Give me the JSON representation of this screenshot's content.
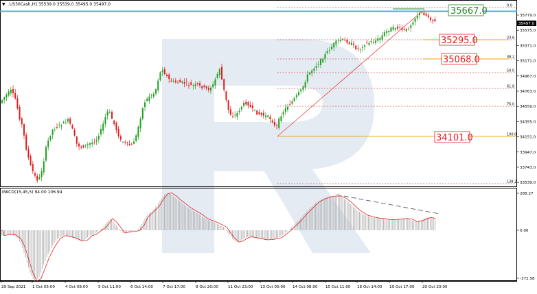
{
  "header": {
    "menu_glyph": "▼",
    "title": ".US30Cash,H1",
    "ohlc": "35539.0 35539.0 35495.0 35497.0"
  },
  "price_axis": {
    "ticks": [
      "35779.0",
      "35575.0",
      "35371.0",
      "35171.0",
      "34967.0",
      "34763.0",
      "34559.0",
      "34355.0",
      "34151.0",
      "33947.0",
      "33743.0",
      "33539.0"
    ],
    "current_price": "35497.0"
  },
  "fibonacci": {
    "levels": [
      "0.0",
      "23.6",
      "38.2",
      "50.0",
      "61.8",
      "76.0",
      "100.0",
      "138.2"
    ],
    "price_labels": [
      {
        "text": "35667.0",
        "color": "#1a8a1a"
      },
      {
        "text": "35295.0",
        "color": "#e02020"
      },
      {
        "text": "35068.0",
        "color": "#e02020"
      },
      {
        "text": "34101.0",
        "color": "#e02020"
      }
    ]
  },
  "indicator": {
    "title": "MACD(15,45,5) 94.00 106.94",
    "ticks": [
      "288.27",
      "0.00",
      "-372.58"
    ]
  },
  "time_axis": {
    "labels": [
      "29 Sep 2021",
      "1 Oct 05:00",
      "4 Oct 08:00",
      "5 Oct 11:00",
      "6 Oct 14:00",
      "7 Oct 17:00",
      "8 Oct 20:00",
      "11 Oct 23:00",
      "13 Oct 05:00",
      "14 Oct 08:00",
      "15 Oct 11:00",
      "18 Oct 14:00",
      "19 Oct 17:00",
      "20 Oct 20:00"
    ]
  },
  "colors": {
    "bull": "#21a021",
    "bear": "#e01c1c",
    "fib": "#e06060",
    "current_level": "#3ab4ea",
    "histogram": "#b4b4b4",
    "signal": "#e82020",
    "watermark": "#e4ebf3"
  },
  "watermark_icon": "broker-logo-watermark"
}
